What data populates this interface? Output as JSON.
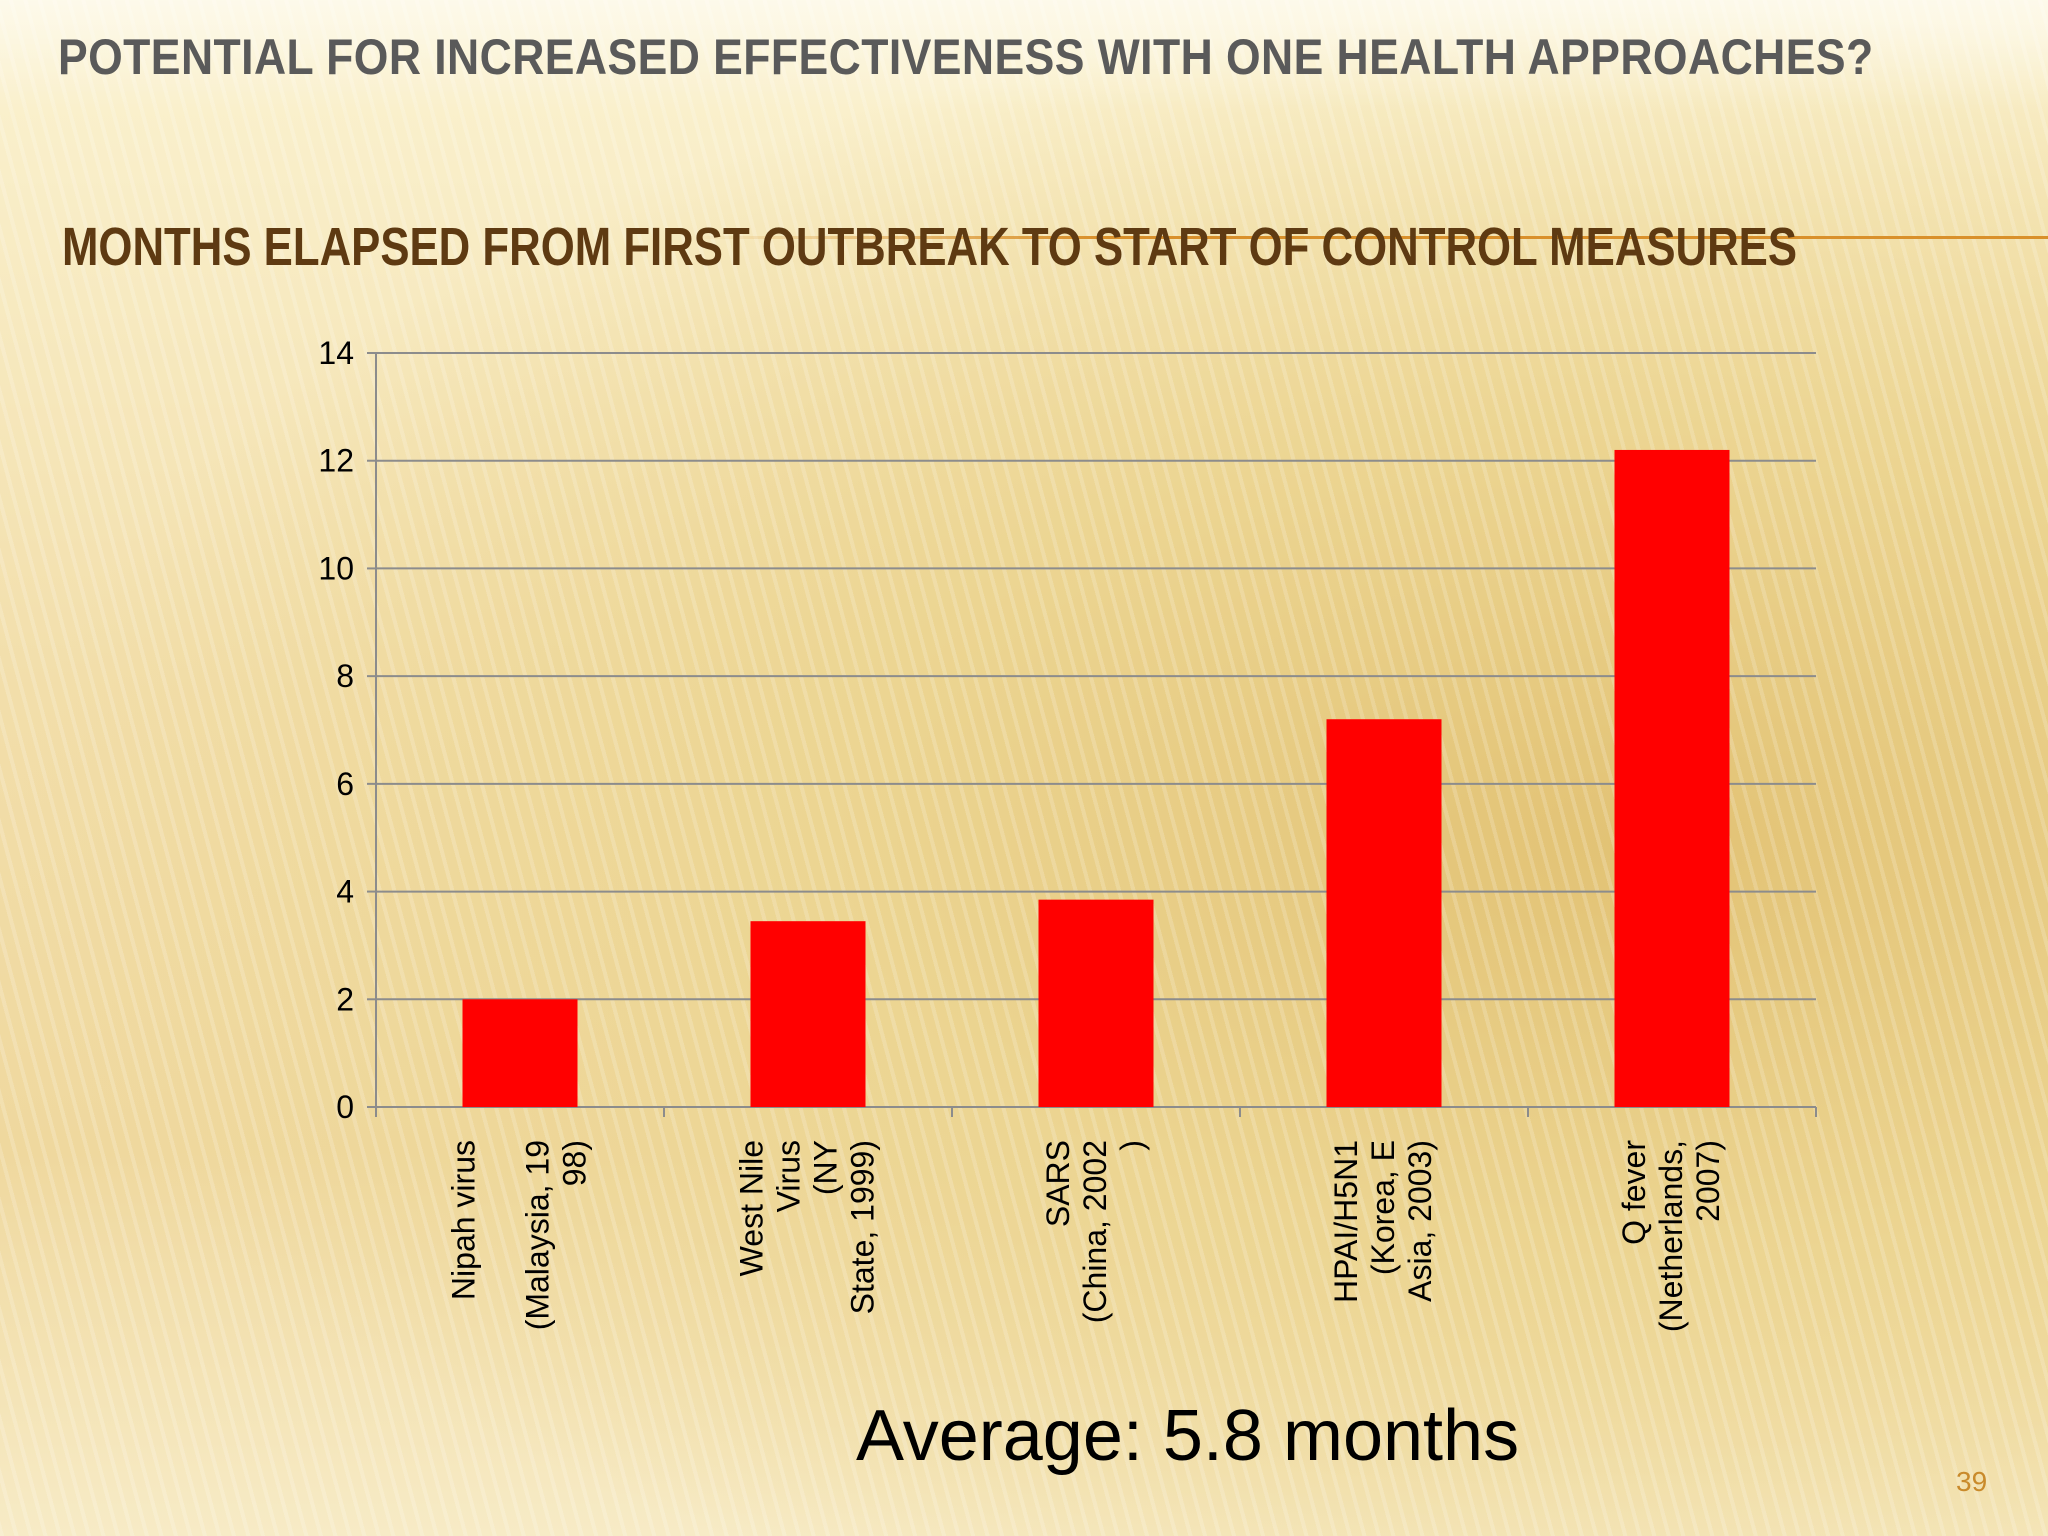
{
  "title": "POTENTIAL FOR INCREASED EFFECTIVENESS WITH ONE HEALTH APPROACHES?",
  "subtitle": "MONTHS ELAPSED FROM FIRST OUTBREAK TO START OF CONTROL MEASURES",
  "average_note": "Average: 5.8 months",
  "page_number": "39",
  "chart_data": {
    "type": "bar",
    "title": "MONTHS ELAPSED FROM FIRST OUTBREAK TO START OF CONTROL MEASURES",
    "xlabel": "",
    "ylabel": "",
    "ylim": [
      0,
      14
    ],
    "yticks": [
      "0",
      "2",
      "4",
      "6",
      "8",
      "10",
      "12",
      "14"
    ],
    "grid": true,
    "legend": "none",
    "categories": [
      "Nipah virus (Malaysia, 1998)",
      "West Nile Virus (NY State, 1999)",
      "SARS (China, 2002)",
      "HPAI/H5N1 (Korea, E Asia, 2003)",
      "Q fever (Netherlands, 2007)"
    ],
    "category_label_lines": [
      [
        "Nipah virus",
        "",
        "(Malaysia, 19",
        "98)"
      ],
      [
        "West Nile",
        "Virus",
        "(NY",
        "State, 1999)"
      ],
      [
        "SARS",
        "(China, 2002",
        ")"
      ],
      [
        "HPAI/H5N1",
        "(Korea, E",
        "Asia, 2003)"
      ],
      [
        "Q fever",
        "(Netherlands,",
        "2007)"
      ]
    ],
    "values": [
      2.0,
      3.45,
      3.85,
      7.2,
      12.2
    ],
    "bar_color": "#ff0000",
    "grid_color": "#8c8c8c"
  }
}
